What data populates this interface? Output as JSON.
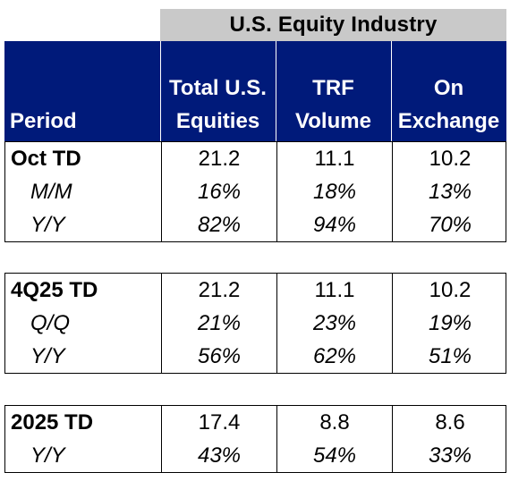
{
  "table": {
    "super_header": "U.S. Equity Industry",
    "headers": {
      "period": "Period",
      "col1_line1": "Total U.S.",
      "col1_line2": "Equities",
      "col2_line1": "TRF",
      "col2_line2": "Volume",
      "col3_line1": "On",
      "col3_line2": "Exchange"
    },
    "blocks": [
      {
        "rows": [
          {
            "label": "Oct TD",
            "v1": "21.2",
            "v2": "11.1",
            "v3": "10.2"
          },
          {
            "label": "M/M",
            "v1": "16%",
            "v2": "18%",
            "v3": "13%"
          },
          {
            "label": "Y/Y",
            "v1": "82%",
            "v2": "94%",
            "v3": "70%"
          }
        ]
      },
      {
        "rows": [
          {
            "label": "4Q25 TD",
            "v1": "21.2",
            "v2": "11.1",
            "v3": "10.2"
          },
          {
            "label": "Q/Q",
            "v1": "21%",
            "v2": "23%",
            "v3": "19%"
          },
          {
            "label": "Y/Y",
            "v1": "56%",
            "v2": "62%",
            "v3": "51%"
          }
        ]
      },
      {
        "rows": [
          {
            "label": "2025 TD",
            "v1": "17.4",
            "v2": "8.8",
            "v3": "8.6"
          },
          {
            "label": "Y/Y",
            "v1": "43%",
            "v2": "54%",
            "v3": "33%"
          }
        ]
      }
    ],
    "colors": {
      "header_navy": "#001a7a",
      "super_header_grey": "#c9c9c9"
    }
  }
}
